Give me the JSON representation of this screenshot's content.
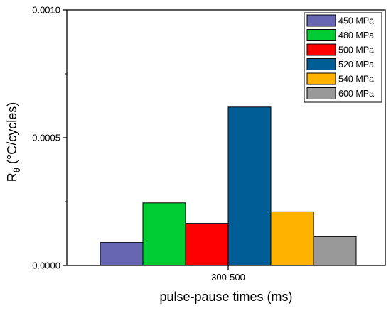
{
  "chart_data": {
    "type": "bar",
    "categories": [
      "300-500"
    ],
    "series": [
      {
        "name": "450 MPa",
        "values": [
          9e-05
        ],
        "color": "#6666b3"
      },
      {
        "name": "480 MPa",
        "values": [
          0.000245
        ],
        "color": "#00cc33"
      },
      {
        "name": "500 MPa",
        "values": [
          0.000165
        ],
        "color": "#ff0000"
      },
      {
        "name": "520 MPa",
        "values": [
          0.00062
        ],
        "color": "#005d96"
      },
      {
        "name": "540 MPa",
        "values": [
          0.00021
        ],
        "color": "#ffb300"
      },
      {
        "name": "600 MPa",
        "values": [
          0.000113
        ],
        "color": "#999999"
      }
    ],
    "xlabel": "pulse-pause times (ms)",
    "ylabel_main": "R",
    "ylabel_sub": "θ",
    "ylabel_rest": " (°C/cycles)",
    "ylim": [
      0,
      0.001
    ],
    "yticks": [
      {
        "value": 0,
        "label": "0.0000"
      },
      {
        "value": 0.0005,
        "label": "0.0005"
      },
      {
        "value": 0.001,
        "label": "0.0010"
      }
    ],
    "grid": false,
    "legend_position": "top-right"
  }
}
